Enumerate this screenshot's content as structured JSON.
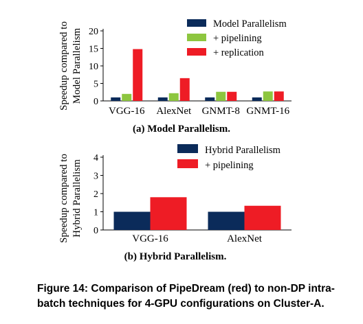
{
  "colors": {
    "model_parallelism": "#0b2b5a",
    "pipelining": "#8dc63f",
    "replication": "#ee1c25",
    "hybrid_parallelism": "#0b2b5a",
    "hybrid_pipelining": "#ee1c25"
  },
  "chart_data": [
    {
      "type": "bar",
      "categories": [
        "VGG-16",
        "AlexNet",
        "GNMT-8",
        "GNMT-16"
      ],
      "series": [
        {
          "name": "Model Parallelism",
          "values": [
            1,
            1,
            1,
            1
          ]
        },
        {
          "name": "+ pipelining",
          "values": [
            2.0,
            2.2,
            2.6,
            2.7
          ]
        },
        {
          "name": "+ replication",
          "values": [
            14.8,
            6.5,
            2.6,
            2.7
          ]
        }
      ],
      "ylabel_lines": [
        "Speedup compared to",
        "Model Parallelism"
      ],
      "ylim": [
        0,
        20
      ],
      "yticks": [
        "0",
        "5",
        "10",
        "15",
        "20"
      ],
      "legend_position": "top-right",
      "caption": "(a) Model Parallelism."
    },
    {
      "type": "bar",
      "categories": [
        "VGG-16",
        "AlexNet"
      ],
      "series": [
        {
          "name": "Hybrid Parallelism",
          "values": [
            1,
            1
          ]
        },
        {
          "name": "+ pipelining",
          "values": [
            1.8,
            1.33
          ]
        }
      ],
      "ylabel_lines": [
        "Speedup compared to",
        "Hybrid Parallelism"
      ],
      "ylim": [
        0,
        4
      ],
      "yticks": [
        "0",
        "1",
        "2",
        "3",
        "4"
      ],
      "legend_position": "top-right",
      "caption": "(b) Hybrid Parallelism."
    }
  ],
  "figure_caption": "Figure 14: Comparison of PipeDream (red) to non-DP intra-batch techniques for 4-GPU configurations on Cluster-A."
}
